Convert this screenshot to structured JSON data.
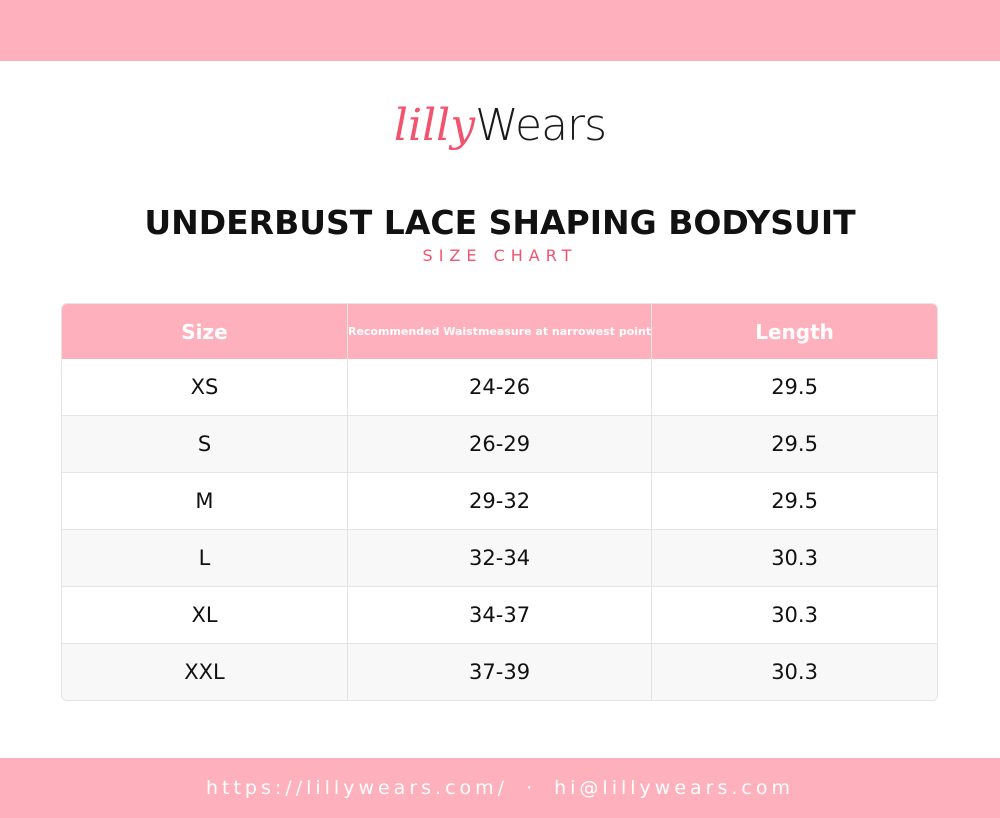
{
  "header": {
    "logo_script": "lilly",
    "logo_word": "Wears",
    "title": "UNDERBUST LACE SHAPING BODYSUIT",
    "subtitle": "SIZE CHART"
  },
  "table": {
    "columns": [
      "Size",
      "Recommended Waistmeasure at narrowest point",
      "Length"
    ],
    "rows": [
      [
        "XS",
        "24-26",
        "29.5"
      ],
      [
        "S",
        "26-29",
        "29.5"
      ],
      [
        "M",
        "29-32",
        "29.5"
      ],
      [
        "L",
        "32-34",
        "30.3"
      ],
      [
        "XL",
        "34-37",
        "30.3"
      ],
      [
        "XXL",
        "37-39",
        "30.3"
      ]
    ]
  },
  "footer": {
    "url": "https://lillywears.com/",
    "separator": "·",
    "email": "hi@lillywears.com"
  }
}
